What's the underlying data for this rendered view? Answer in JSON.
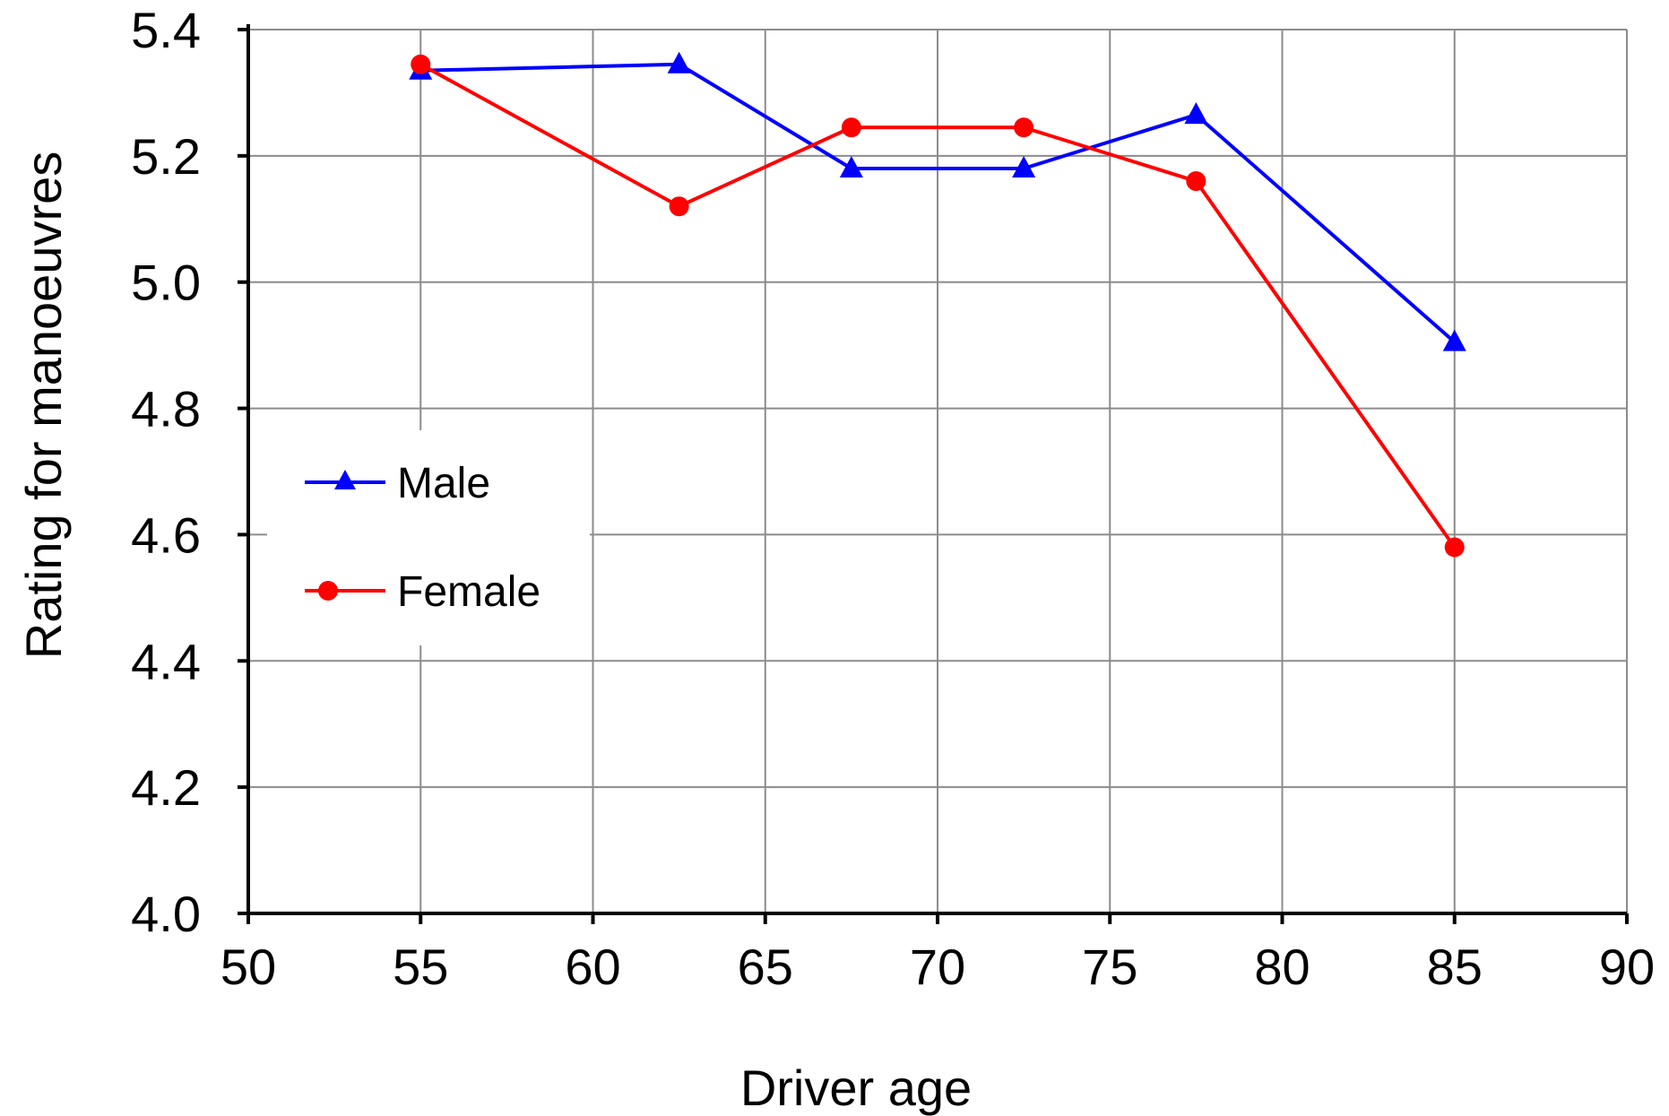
{
  "chart_data": {
    "type": "line",
    "title": "",
    "xlabel": "Driver age",
    "ylabel": "Rating for manoeuvres",
    "xlim": [
      50,
      90
    ],
    "ylim": [
      4.0,
      5.4
    ],
    "x_ticks": [
      "50",
      "55",
      "60",
      "65",
      "70",
      "75",
      "80",
      "85",
      "90"
    ],
    "y_ticks": [
      "4.0",
      "4.2",
      "4.4",
      "4.6",
      "4.8",
      "5.0",
      "5.2",
      "5.4"
    ],
    "grid": true,
    "legend_position": "left",
    "series": [
      {
        "name": "Male",
        "color": "#0000ff",
        "marker": "triangle",
        "x": [
          55,
          62.5,
          67.5,
          72.5,
          77.5,
          85
        ],
        "y": [
          5.335,
          5.345,
          5.18,
          5.18,
          5.265,
          4.905
        ]
      },
      {
        "name": "Female",
        "color": "#ff0000",
        "marker": "circle",
        "x": [
          55,
          62.5,
          67.5,
          72.5,
          77.5,
          85
        ],
        "y": [
          5.345,
          5.12,
          5.245,
          5.245,
          5.16,
          4.58
        ]
      }
    ]
  }
}
